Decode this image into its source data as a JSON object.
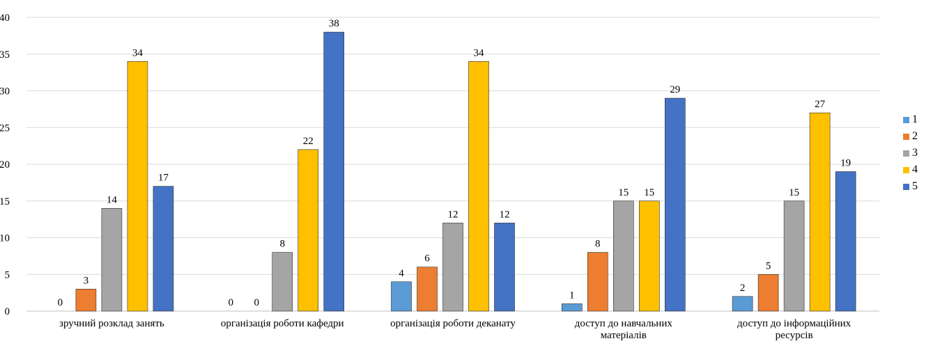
{
  "chart_data": {
    "type": "bar",
    "title": "",
    "xlabel": "",
    "ylabel": "",
    "ylim": [
      0,
      40
    ],
    "yticks": [
      0,
      5,
      10,
      15,
      20,
      25,
      30,
      35,
      40
    ],
    "grid": true,
    "legend_position": "right",
    "categories": [
      [
        "зручний розклад занять"
      ],
      [
        "організація роботи кафедри"
      ],
      [
        "організація роботи деканату"
      ],
      [
        "доступ до навчальних",
        "матеріалів"
      ],
      [
        "доступ до інформаційних",
        "ресурсів"
      ]
    ],
    "series": [
      {
        "name": "1",
        "color": "#5B9BD5",
        "values": [
          0,
          0,
          4,
          1,
          2
        ]
      },
      {
        "name": "2",
        "color": "#ED7D31",
        "values": [
          3,
          0,
          6,
          8,
          5
        ]
      },
      {
        "name": "3",
        "color": "#A5A5A5",
        "values": [
          14,
          8,
          12,
          15,
          15
        ]
      },
      {
        "name": "4",
        "color": "#FFC000",
        "values": [
          34,
          22,
          34,
          15,
          27
        ]
      },
      {
        "name": "5",
        "color": "#4472C4",
        "values": [
          17,
          38,
          12,
          29,
          19
        ]
      }
    ]
  }
}
